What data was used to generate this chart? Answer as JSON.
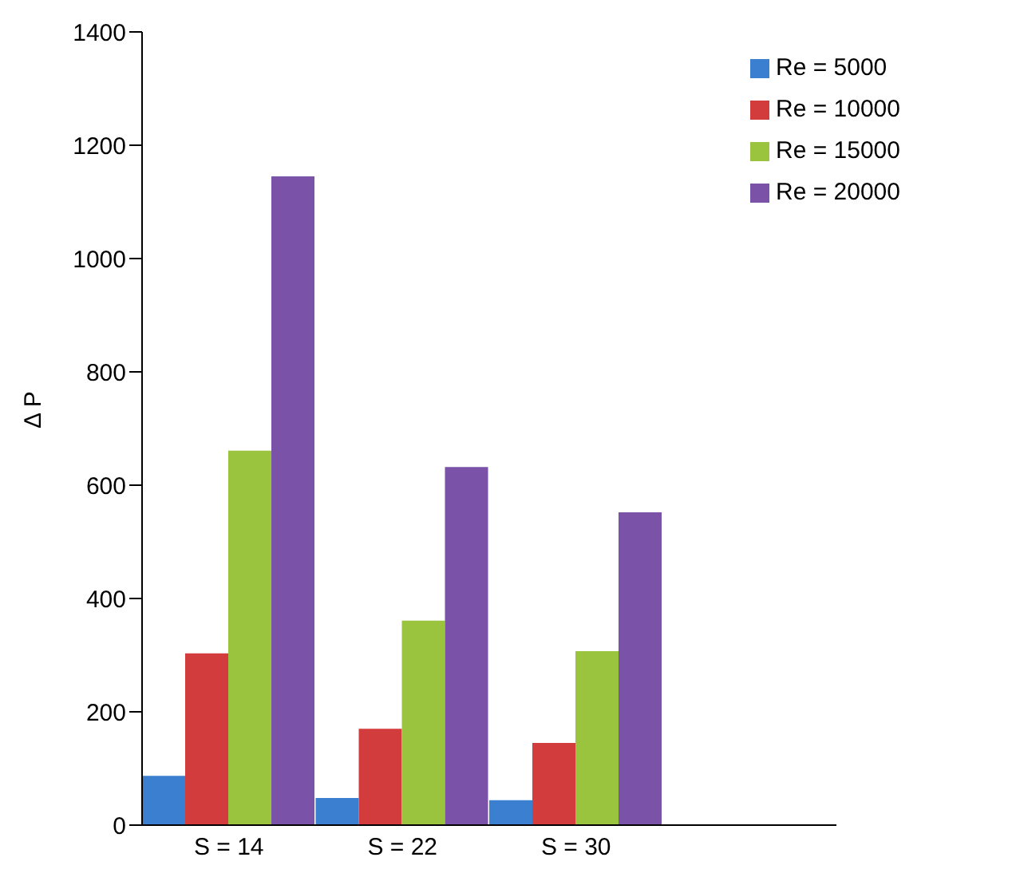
{
  "chart_data": {
    "type": "bar",
    "ylabel": "Δ P",
    "categories": [
      "S = 14",
      "S = 22",
      "S = 30",
      null
    ],
    "series": [
      {
        "name": "Re = 5000",
        "color": "#3a7fd0",
        "values": [
          87,
          48,
          44,
          null
        ]
      },
      {
        "name": "Re = 10000",
        "color": "#d23c3c",
        "values": [
          303,
          170,
          145,
          null
        ]
      },
      {
        "name": "Re = 15000",
        "color": "#9bc43e",
        "values": [
          661,
          361,
          307,
          null
        ]
      },
      {
        "name": "Re = 20000",
        "color": "#7a52a8",
        "values": [
          1145,
          632,
          552,
          null
        ]
      }
    ],
    "ylim": [
      0,
      1400
    ],
    "yticks": [
      0,
      200,
      400,
      600,
      800,
      1000,
      1200,
      1400
    ],
    "legend": "top right"
  }
}
